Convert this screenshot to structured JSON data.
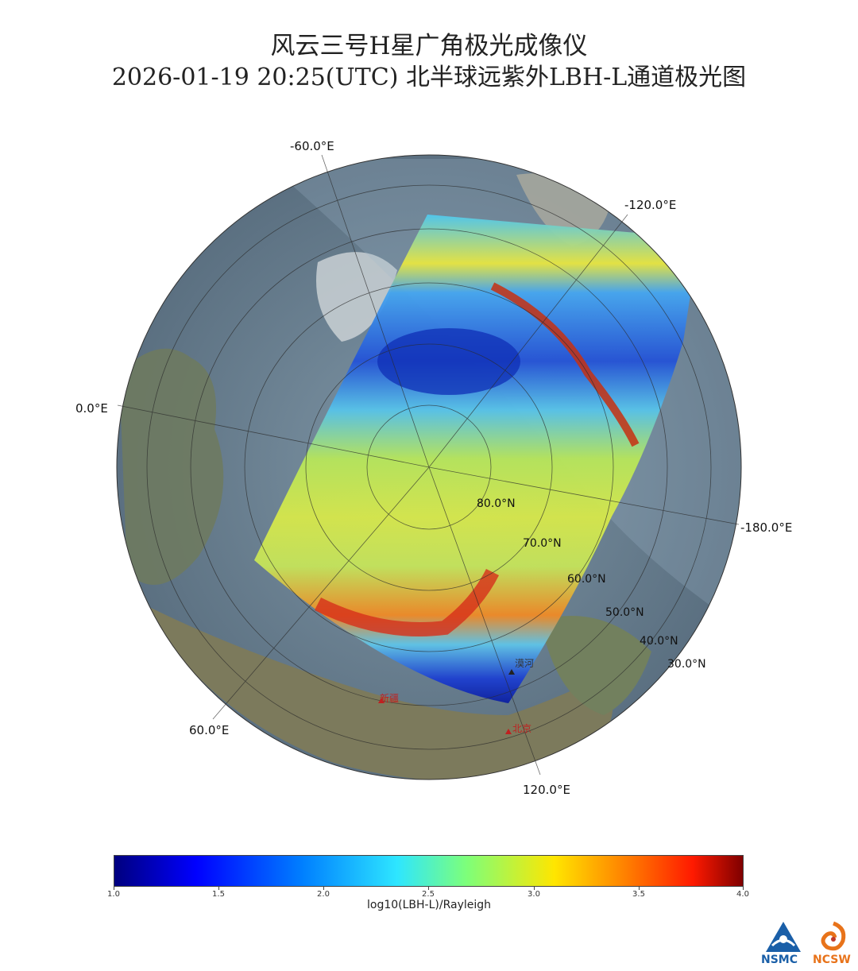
{
  "title_line1": "风云三号H星广角极光成像仪",
  "title_line2": "2026-01-19 20:25(UTC) 北半球远紫外LBH-L通道极光图",
  "longitude_labels": [
    "-60.0°E",
    "-120.0°E",
    "0.0°E",
    "-180.0°E",
    "60.0°E",
    "120.0°E"
  ],
  "latitude_labels": [
    "80.0°N",
    "70.0°N",
    "60.0°N",
    "50.0°N",
    "40.0°N",
    "30.0°N"
  ],
  "city_labels": [
    "漠河",
    "新疆",
    "北京"
  ],
  "colorbar": {
    "ticks": [
      "1.0",
      "1.5",
      "2.0",
      "2.5",
      "3.0",
      "3.5",
      "4.0"
    ],
    "label": "log10(LBH-L)/Rayleigh",
    "colors": [
      "#00007f",
      "#0000ff",
      "#0080ff",
      "#2ee6ff",
      "#7dff7a",
      "#ffe600",
      "#ff7a00",
      "#ff1a00",
      "#7f0000"
    ]
  },
  "logos": {
    "left": "NSMC",
    "right": "NCSW",
    "left_color": "#1a5fa8",
    "right_color": "#e8731a"
  },
  "icons": [
    "nsmc-logo-icon",
    "ncsw-logo-icon"
  ]
}
